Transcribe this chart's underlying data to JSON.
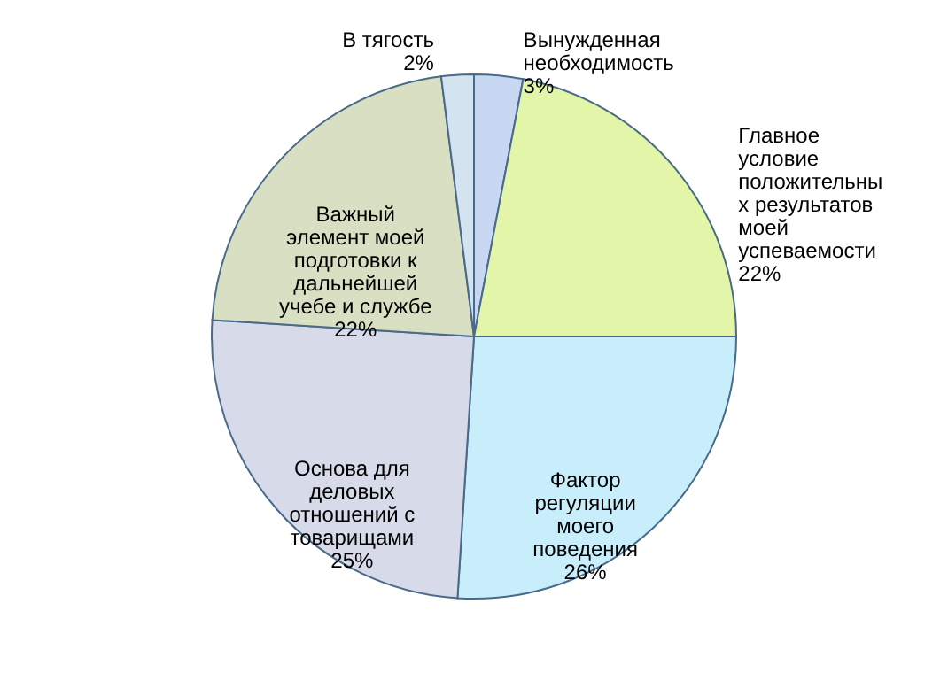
{
  "chart_data": {
    "type": "pie",
    "categories": [
      "Вынужденная\nнеобходимость",
      "Главное\nусловие\nположительны\nх результатов\nмоей\nуспеваемости",
      "Фактор\nрегуляции\nмоего\nповедения",
      "Основа для\nделовых\nотношений с\nтоварищами",
      "Важный\nэлемент моей\nподготовки к\nдальнейшей\nучебе и службе",
      "В тягость"
    ],
    "values": [
      3,
      22,
      26,
      25,
      22,
      2
    ],
    "value_labels": [
      "3%",
      "22%",
      "26%",
      "25%",
      "22%",
      "2%"
    ],
    "colors": [
      "#c9d8f2",
      "#e2f5a8",
      "#c9eefb",
      "#d6dae9",
      "#d9dfc2",
      "#d3e3ef"
    ]
  }
}
